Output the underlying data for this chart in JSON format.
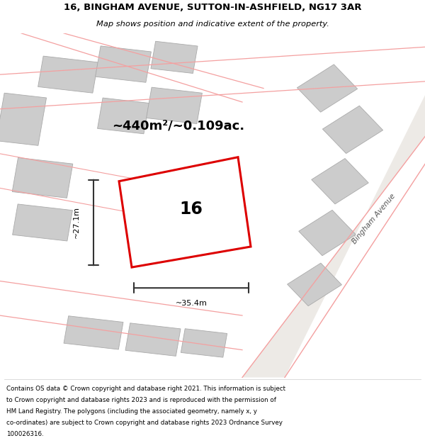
{
  "title_line1": "16, BINGHAM AVENUE, SUTTON-IN-ASHFIELD, NG17 3AR",
  "title_line2": "Map shows position and indicative extent of the property.",
  "area_label": "~440m²/~0.109ac.",
  "plot_number": "16",
  "width_label": "~35.4m",
  "height_label": "~27.1m",
  "street_label": "Bingham Avenue",
  "footer_lines": [
    "Contains OS data © Crown copyright and database right 2021. This information is subject",
    "to Crown copyright and database rights 2023 and is reproduced with the permission of",
    "HM Land Registry. The polygons (including the associated geometry, namely x, y",
    "co-ordinates) are subject to Crown copyright and database rights 2023 Ordnance Survey",
    "100026316."
  ],
  "map_bg": "#f5f3f0",
  "plot_fill": "#ffffff",
  "plot_edge": "#dd0000",
  "building_fill": "#cccccc",
  "building_edge": "#aaaaaa",
  "road_line_color": "#f4a0a0",
  "dim_line_color": "#333333"
}
